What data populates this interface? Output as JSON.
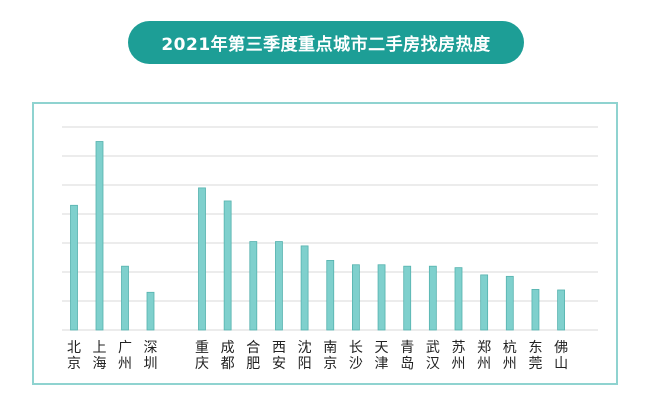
{
  "title": "2021年第三季度重点城市二手房找房热度",
  "colors": {
    "accent": "#1d9e96",
    "frame": "#8fd3d0",
    "bar": "#7fd0cd",
    "bar_stroke": "#55b2ae",
    "grid": "#d9d9d9"
  },
  "chart_data": {
    "type": "bar",
    "title": "2021年第三季度重点城市二手房找房热度",
    "xlabel": "",
    "ylabel": "",
    "ylim": [
      0,
      7
    ],
    "grid": true,
    "groups": [
      [
        "北京",
        "上海",
        "广州",
        "深圳"
      ],
      [
        "重庆",
        "成都",
        "合肥",
        "西安",
        "沈阳",
        "南京",
        "长沙",
        "天津",
        "青岛",
        "武汉",
        "苏州",
        "郑州",
        "杭州",
        "东莞",
        "佛山"
      ]
    ],
    "categories": [
      "北京",
      "上海",
      "广州",
      "深圳",
      "重庆",
      "成都",
      "合肥",
      "西安",
      "沈阳",
      "南京",
      "长沙",
      "天津",
      "青岛",
      "武汉",
      "苏州",
      "郑州",
      "杭州",
      "东莞",
      "佛山"
    ],
    "values": [
      4.3,
      6.5,
      2.2,
      1.3,
      4.9,
      4.45,
      3.05,
      3.05,
      2.9,
      2.4,
      2.25,
      2.25,
      2.2,
      2.2,
      2.15,
      1.9,
      1.85,
      1.4,
      1.38
    ]
  }
}
